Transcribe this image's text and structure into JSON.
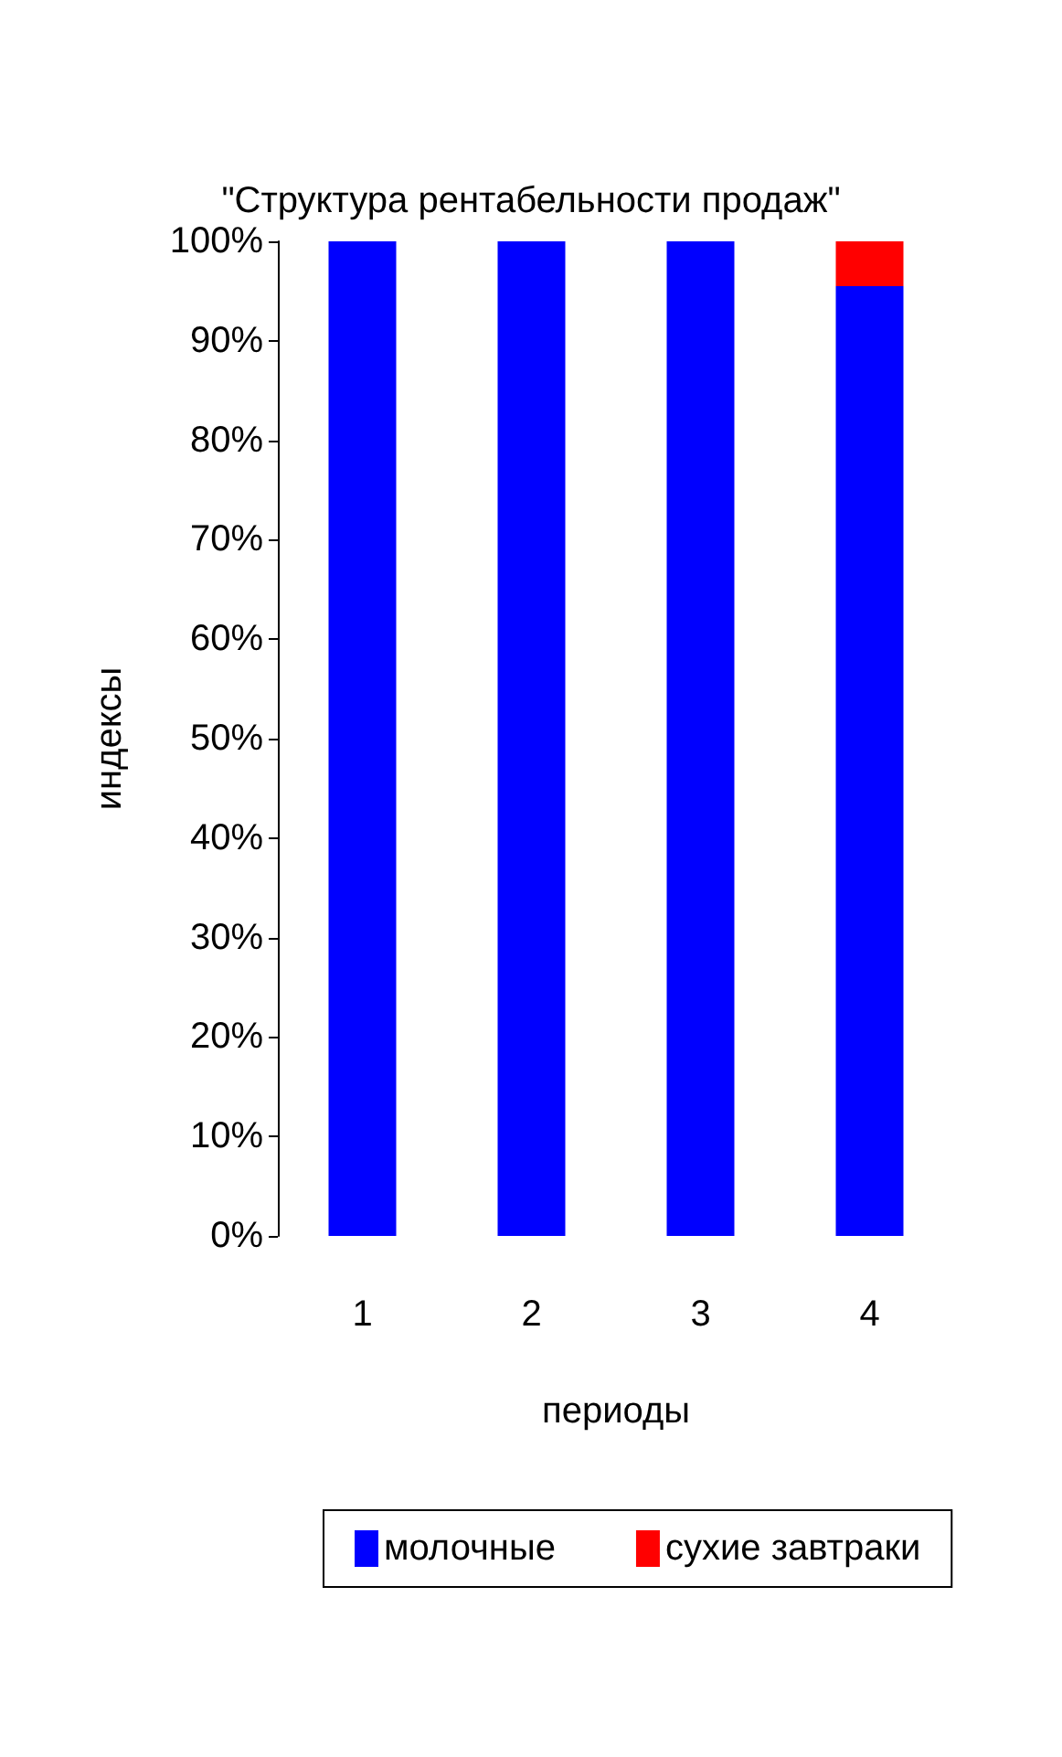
{
  "chart_data": {
    "type": "bar",
    "title": "\"Структура рентабельности продаж\"",
    "xlabel": "периоды",
    "ylabel": "индексы",
    "categories": [
      "1",
      "2",
      "3",
      "4"
    ],
    "series": [
      {
        "name": "молочные",
        "color": "#0000ff",
        "values": [
          100,
          100,
          100,
          95.5
        ]
      },
      {
        "name": "сухие завтраки",
        "color": "#ff0000",
        "values": [
          0,
          0,
          0,
          4.5
        ]
      }
    ],
    "stacked": true,
    "ylim": [
      0,
      100
    ],
    "yticks": [
      {
        "value": 0,
        "label": "0%"
      },
      {
        "value": 10,
        "label": "10%"
      },
      {
        "value": 20,
        "label": "20%"
      },
      {
        "value": 30,
        "label": "30%"
      },
      {
        "value": 40,
        "label": "40%"
      },
      {
        "value": 50,
        "label": "50%"
      },
      {
        "value": 60,
        "label": "60%"
      },
      {
        "value": 70,
        "label": "70%"
      },
      {
        "value": 80,
        "label": "80%"
      },
      {
        "value": 90,
        "label": "90%"
      },
      {
        "value": 100,
        "label": "100%"
      }
    ],
    "legend": "bottom"
  }
}
